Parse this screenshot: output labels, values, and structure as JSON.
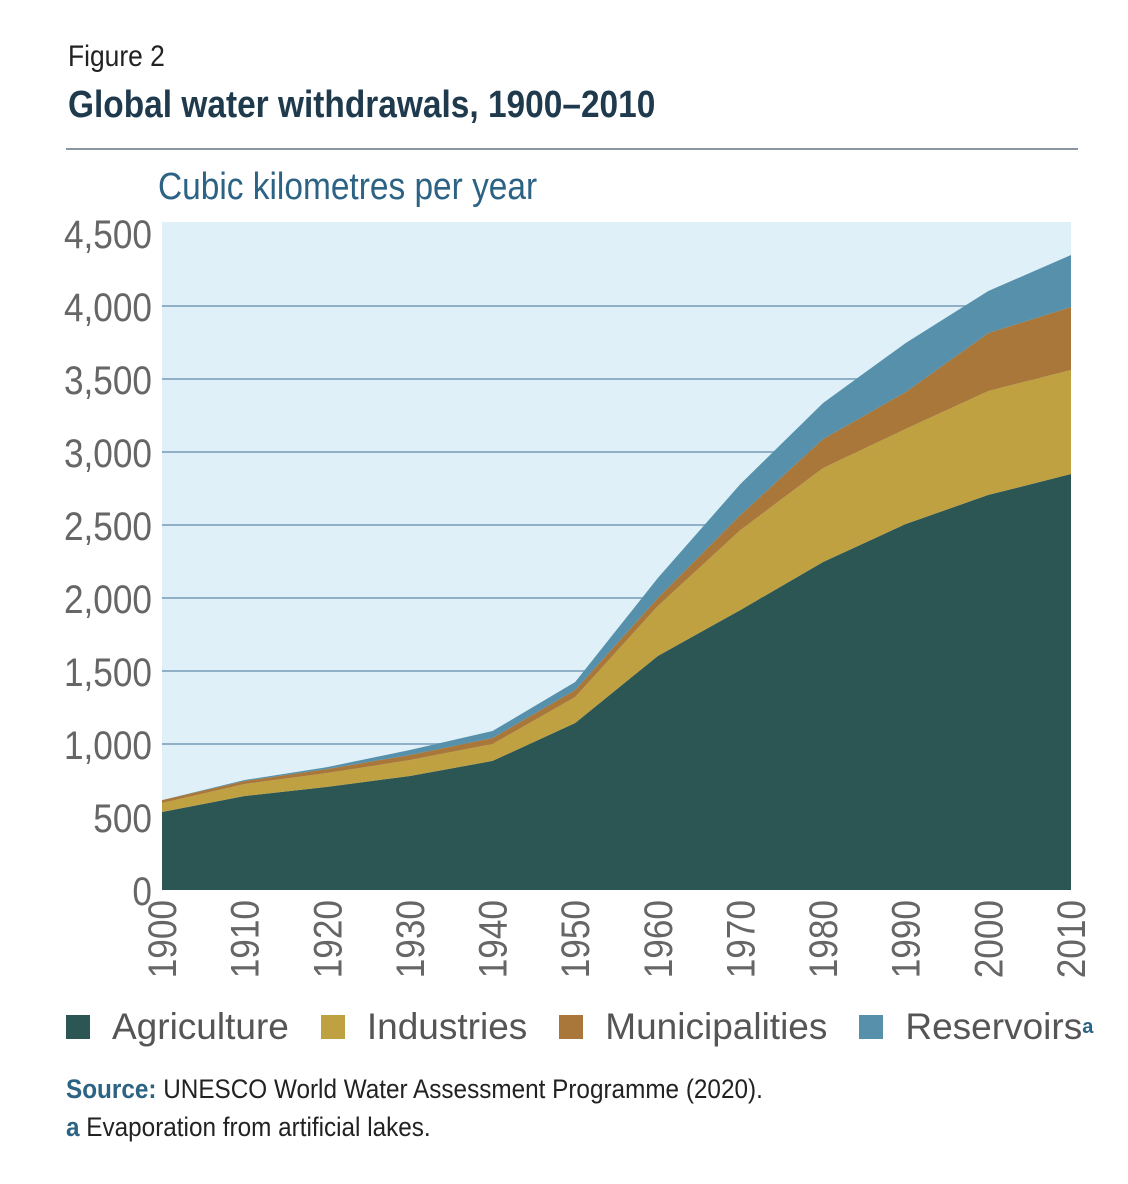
{
  "figure_label": "Figure 2",
  "title": "Global water withdrawals, 1900–2010",
  "source_label": "Source:",
  "source_text": "UNESCO World Water Assessment Programme (2020).",
  "footnote_marker": "a",
  "footnote_text": "Evaporation from artificial lakes.",
  "chart_data": {
    "type": "area",
    "stacked": true,
    "ylabel": "Cubic kilometres per year",
    "ylim": [
      0,
      4500
    ],
    "yticks": [
      "0",
      "500",
      "1,000",
      "1,500",
      "2,000",
      "2,500",
      "3,000",
      "3,500",
      "4,000",
      "4,500"
    ],
    "ytick_values": [
      0,
      500,
      1000,
      1500,
      2000,
      2500,
      3000,
      3500,
      4000,
      4500
    ],
    "x": [
      1900,
      1910,
      1920,
      1930,
      1940,
      1950,
      1960,
      1970,
      1980,
      1990,
      2000,
      2010
    ],
    "xticks": [
      "1900",
      "1910",
      "1920",
      "1930",
      "1940",
      "1950",
      "1960",
      "1970",
      "1980",
      "1990",
      "2000",
      "2010"
    ],
    "grid": true,
    "legend_placement": "bottom",
    "series": [
      {
        "name": "Agriculture",
        "color": "#2c5654",
        "values": [
          534,
          644,
          706,
          781,
          884,
          1144,
          1603,
          1918,
          2247,
          2507,
          2706,
          2849
        ]
      },
      {
        "name": "Industries",
        "color": "#c0a141",
        "values": [
          62,
          82,
          95,
          109,
          116,
          178,
          342,
          548,
          643,
          651,
          712,
          713
        ]
      },
      {
        "name": "Municipalities",
        "color": "#a9773a",
        "values": [
          20,
          21,
          28,
          35,
          41,
          48,
          55,
          103,
          199,
          253,
          397,
          431
        ]
      },
      {
        "name": "Reservoirs",
        "superscript": "a",
        "color": "#5690aa",
        "values": [
          0,
          6,
          13,
          34,
          48,
          55,
          137,
          212,
          247,
          336,
          288,
          356
        ]
      }
    ],
    "background_color": "#dff0f8",
    "grid_color": "#8fb0c6"
  }
}
